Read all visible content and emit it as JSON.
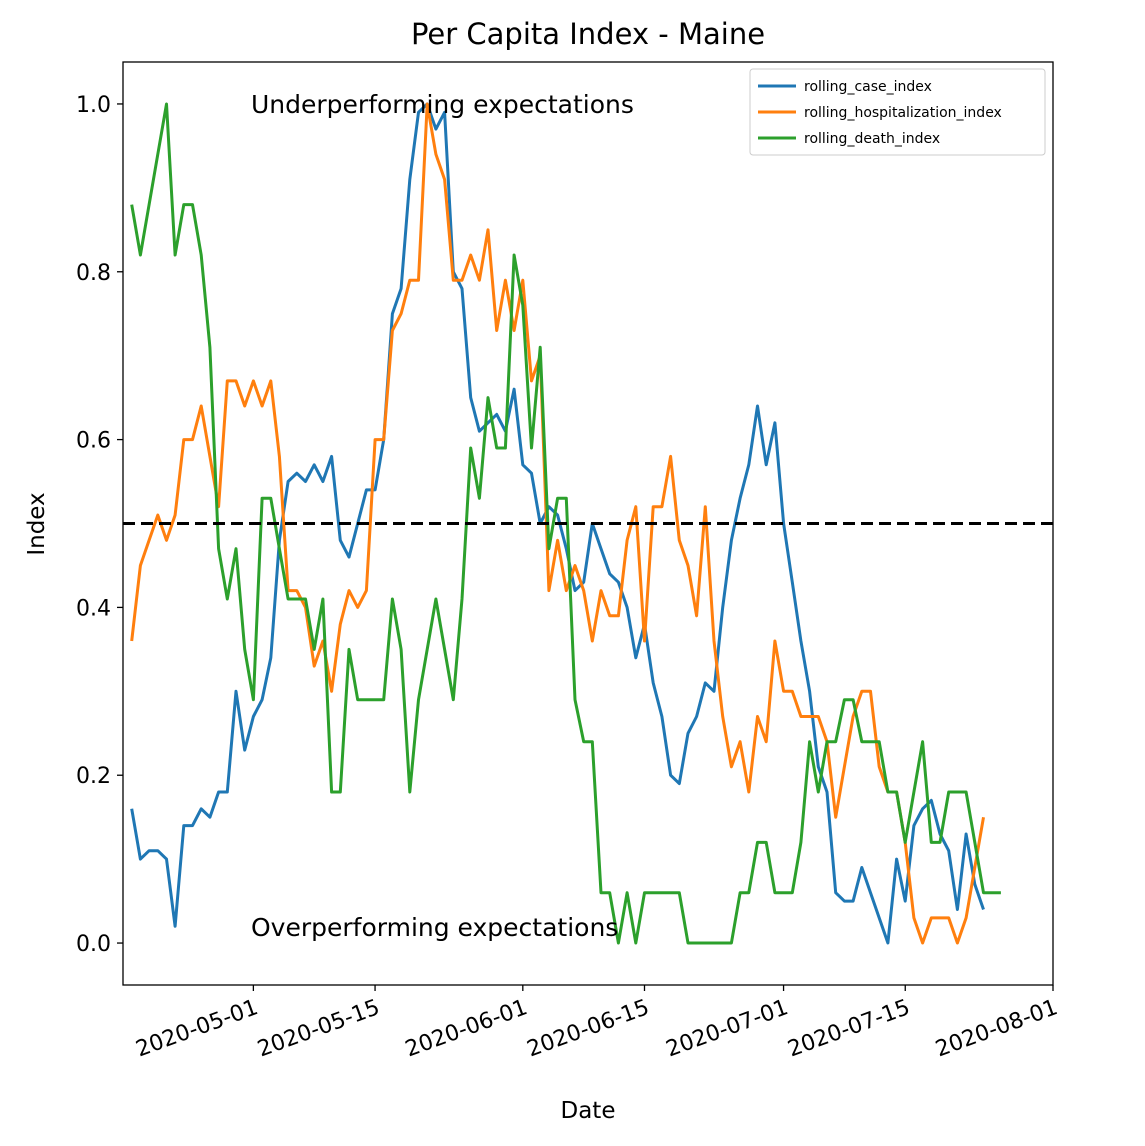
{
  "chart_data": {
    "type": "line",
    "title": "Per Capita Index - Maine",
    "xlabel": "Date",
    "ylabel": "Index",
    "xlim": [
      "2020-04-16",
      "2020-08-01"
    ],
    "ylim": [
      -0.05,
      1.05
    ],
    "x_ticks": [
      "2020-05-01",
      "2020-05-15",
      "2020-06-01",
      "2020-06-15",
      "2020-07-01",
      "2020-07-15",
      "2020-08-01"
    ],
    "y_ticks": [
      "0.0",
      "0.2",
      "0.4",
      "0.6",
      "0.8",
      "1.0"
    ],
    "reference_line": {
      "y": 0.5,
      "style": "dashed",
      "color": "#000000"
    },
    "annotations": [
      {
        "text": "Underperforming expectations",
        "x": "2020-05-01",
        "y": 0.99
      },
      {
        "text": "Overperforming expectations",
        "x": "2020-05-01",
        "y": 0.01
      }
    ],
    "legend_position": "top-right",
    "grid": false,
    "x_start": "2020-04-17",
    "series": [
      {
        "name": "rolling_case_index",
        "color": "#1f77b4",
        "values": [
          0.16,
          0.1,
          0.11,
          0.11,
          0.1,
          0.02,
          0.14,
          0.14,
          0.16,
          0.15,
          0.18,
          0.18,
          0.3,
          0.23,
          0.27,
          0.29,
          0.34,
          0.48,
          0.55,
          0.56,
          0.55,
          0.57,
          0.55,
          0.58,
          0.48,
          0.46,
          0.5,
          0.54,
          0.54,
          0.6,
          0.75,
          0.78,
          0.91,
          0.99,
          1.0,
          0.97,
          0.99,
          0.8,
          0.78,
          0.65,
          0.61,
          0.62,
          0.63,
          0.61,
          0.66,
          0.57,
          0.56,
          0.5,
          0.52,
          0.51,
          0.47,
          0.42,
          0.43,
          0.5,
          0.47,
          0.44,
          0.43,
          0.4,
          0.34,
          0.38,
          0.31,
          0.27,
          0.2,
          0.19,
          0.25,
          0.27,
          0.31,
          0.3,
          0.4,
          0.48,
          0.53,
          0.57,
          0.64,
          0.57,
          0.62,
          0.5,
          0.43,
          0.36,
          0.3,
          0.21,
          0.18,
          0.06,
          0.05,
          0.05,
          0.09,
          0.06,
          0.03,
          0.0,
          0.1,
          0.05,
          0.14,
          0.16,
          0.17,
          0.13,
          0.11,
          0.04,
          0.13,
          0.07,
          0.04
        ]
      },
      {
        "name": "rolling_hospitalization_index",
        "color": "#ff7f0e",
        "values": [
          0.36,
          0.45,
          0.48,
          0.51,
          0.48,
          0.51,
          0.6,
          0.6,
          0.64,
          0.58,
          0.52,
          0.67,
          0.67,
          0.64,
          0.67,
          0.64,
          0.67,
          0.58,
          0.42,
          0.42,
          0.4,
          0.33,
          0.36,
          0.3,
          0.38,
          0.42,
          0.4,
          0.42,
          0.6,
          0.6,
          0.73,
          0.75,
          0.79,
          0.79,
          1.0,
          0.94,
          0.91,
          0.79,
          0.79,
          0.82,
          0.79,
          0.85,
          0.73,
          0.79,
          0.73,
          0.79,
          0.67,
          0.7,
          0.42,
          0.48,
          0.42,
          0.45,
          0.42,
          0.36,
          0.42,
          0.39,
          0.39,
          0.48,
          0.52,
          0.36,
          0.52,
          0.52,
          0.58,
          0.48,
          0.45,
          0.39,
          0.52,
          0.36,
          0.27,
          0.21,
          0.24,
          0.18,
          0.27,
          0.24,
          0.36,
          0.3,
          0.3,
          0.27,
          0.27,
          0.27,
          0.24,
          0.15,
          0.21,
          0.27,
          0.3,
          0.3,
          0.21,
          0.18,
          0.18,
          0.12,
          0.03,
          0.0,
          0.03,
          0.03,
          0.03,
          0.0,
          0.03,
          0.09,
          0.15
        ]
      },
      {
        "name": "rolling_death_index",
        "color": "#2ca02c",
        "values": [
          0.88,
          0.82,
          0.88,
          0.94,
          1.0,
          0.82,
          0.88,
          0.88,
          0.82,
          0.71,
          0.47,
          0.41,
          0.47,
          0.35,
          0.29,
          0.53,
          0.53,
          0.47,
          0.41,
          0.41,
          0.41,
          0.35,
          0.41,
          0.18,
          0.18,
          0.35,
          0.29,
          0.29,
          0.29,
          0.29,
          0.41,
          0.35,
          0.18,
          0.29,
          0.35,
          0.41,
          0.35,
          0.29,
          0.41,
          0.59,
          0.53,
          0.65,
          0.59,
          0.59,
          0.82,
          0.76,
          0.59,
          0.71,
          0.47,
          0.53,
          0.53,
          0.29,
          0.24,
          0.24,
          0.06,
          0.06,
          0.0,
          0.06,
          0.0,
          0.06,
          0.06,
          0.06,
          0.06,
          0.06,
          0.0,
          0.0,
          0.0,
          0.0,
          0.0,
          0.0,
          0.06,
          0.06,
          0.12,
          0.12,
          0.06,
          0.06,
          0.06,
          0.12,
          0.24,
          0.18,
          0.24,
          0.24,
          0.29,
          0.29,
          0.24,
          0.24,
          0.24,
          0.18,
          0.18,
          0.12,
          0.18,
          0.24,
          0.12,
          0.12,
          0.18,
          0.18,
          0.18,
          0.12,
          0.06,
          0.06,
          0.06
        ]
      }
    ]
  }
}
